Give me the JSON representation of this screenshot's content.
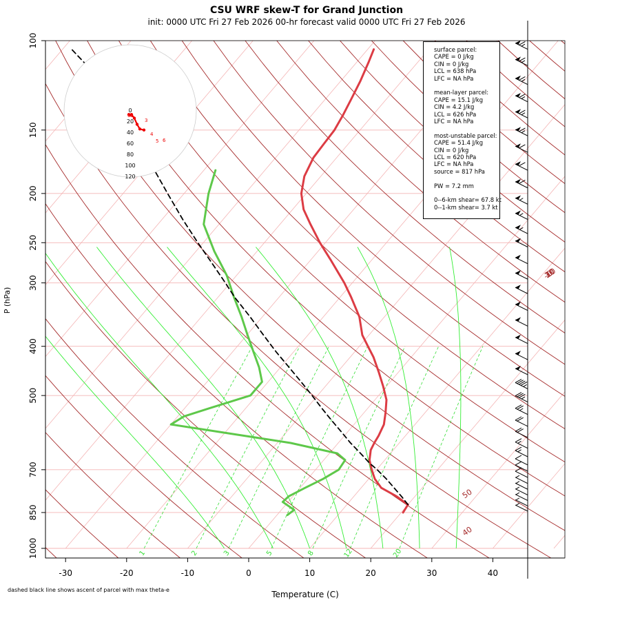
{
  "chart_data": {
    "type": "skew-t",
    "title": "CSU WRF skew-T for Grand Junction",
    "subtitle": "init: 0000 UTC Fri 27 Feb 2026     00-hr forecast valid 0000 UTC Fri 27 Feb 2026",
    "xlabel": "Temperature (C)",
    "ylabel": "P (hPa)",
    "footnote": "dashed black line shows ascent of parcel with max theta-e",
    "xlim": [
      -33,
      45
    ],
    "ylim": [
      1000,
      100
    ],
    "y_scale": "log",
    "x_ticks": [
      -30,
      -20,
      -10,
      0,
      10,
      20,
      30,
      40
    ],
    "p_ticks": [
      100,
      150,
      200,
      250,
      300,
      400,
      500,
      700,
      850,
      1000
    ],
    "grid": true,
    "dry_adiabats_C": [
      -10,
      0,
      10,
      20,
      30,
      40,
      50
    ],
    "mixing_ratio_labels": [
      "1",
      "2",
      "3",
      "5",
      "8",
      "12",
      "20"
    ],
    "temperature_profile": [
      {
        "p": 850,
        "t": 20.3
      },
      {
        "p": 820,
        "t": 20.0
      },
      {
        "p": 790,
        "t": 17.0
      },
      {
        "p": 760,
        "t": 13.3
      },
      {
        "p": 730,
        "t": 11.0
      },
      {
        "p": 700,
        "t": 9.2
      },
      {
        "p": 670,
        "t": 7.5
      },
      {
        "p": 640,
        "t": 6.3
      },
      {
        "p": 620,
        "t": 5.9
      },
      {
        "p": 600,
        "t": 5.6
      },
      {
        "p": 570,
        "t": 4.9
      },
      {
        "p": 540,
        "t": 3.5
      },
      {
        "p": 510,
        "t": 1.9
      },
      {
        "p": 480,
        "t": -0.5
      },
      {
        "p": 450,
        "t": -3.2
      },
      {
        "p": 420,
        "t": -6.2
      },
      {
        "p": 400,
        "t": -8.6
      },
      {
        "p": 380,
        "t": -11.1
      },
      {
        "p": 350,
        "t": -14.1
      },
      {
        "p": 320,
        "t": -18.2
      },
      {
        "p": 300,
        "t": -21.3
      },
      {
        "p": 270,
        "t": -26.8
      },
      {
        "p": 250,
        "t": -30.9
      },
      {
        "p": 230,
        "t": -35.0
      },
      {
        "p": 215,
        "t": -38.2
      },
      {
        "p": 200,
        "t": -40.8
      },
      {
        "p": 185,
        "t": -42.7
      },
      {
        "p": 170,
        "t": -43.8
      },
      {
        "p": 160,
        "t": -44.0
      },
      {
        "p": 150,
        "t": -44.2
      },
      {
        "p": 140,
        "t": -44.9
      },
      {
        "p": 130,
        "t": -45.8
      },
      {
        "p": 120,
        "t": -46.8
      },
      {
        "p": 110,
        "t": -48.1
      },
      {
        "p": 104,
        "t": -49.0
      }
    ],
    "dewpoint_profile": [
      {
        "p": 860,
        "t": 1.7
      },
      {
        "p": 840,
        "t": 2.1
      },
      {
        "p": 810,
        "t": -0.9
      },
      {
        "p": 790,
        "t": -0.7
      },
      {
        "p": 760,
        "t": 0.8
      },
      {
        "p": 730,
        "t": 2.5
      },
      {
        "p": 700,
        "t": 3.8
      },
      {
        "p": 670,
        "t": 3.5
      },
      {
        "p": 650,
        "t": 1.3
      },
      {
        "p": 620,
        "t": -7.8
      },
      {
        "p": 590,
        "t": -20.9
      },
      {
        "p": 570,
        "t": -30.0
      },
      {
        "p": 550,
        "t": -29.0
      },
      {
        "p": 530,
        "t": -26.0
      },
      {
        "p": 500,
        "t": -21.0
      },
      {
        "p": 470,
        "t": -21.0
      },
      {
        "p": 440,
        "t": -23.5
      },
      {
        "p": 410,
        "t": -26.6
      },
      {
        "p": 380,
        "t": -29.9
      },
      {
        "p": 350,
        "t": -33.4
      },
      {
        "p": 320,
        "t": -37.4
      },
      {
        "p": 290,
        "t": -41.6
      },
      {
        "p": 260,
        "t": -47.0
      },
      {
        "p": 230,
        "t": -52.5
      },
      {
        "p": 200,
        "t": -56.0
      },
      {
        "p": 180,
        "t": -58.1
      }
    ],
    "parcel_profile": [
      {
        "p": 820,
        "t": 20.0
      },
      {
        "p": 790,
        "t": 17.8
      },
      {
        "p": 760,
        "t": 15.4
      },
      {
        "p": 730,
        "t": 12.9
      },
      {
        "p": 700,
        "t": 10.1
      },
      {
        "p": 680,
        "t": 8.0
      },
      {
        "p": 650,
        "t": 5.1
      },
      {
        "p": 620,
        "t": 2.0
      },
      {
        "p": 590,
        "t": -1.0
      },
      {
        "p": 560,
        "t": -4.2
      },
      {
        "p": 530,
        "t": -7.5
      },
      {
        "p": 500,
        "t": -10.9
      },
      {
        "p": 470,
        "t": -14.6
      },
      {
        "p": 440,
        "t": -18.6
      },
      {
        "p": 410,
        "t": -22.9
      },
      {
        "p": 380,
        "t": -27.3
      },
      {
        "p": 350,
        "t": -32.0
      },
      {
        "p": 320,
        "t": -37.3
      },
      {
        "p": 300,
        "t": -40.8
      },
      {
        "p": 280,
        "t": -44.6
      },
      {
        "p": 250,
        "t": -50.9
      },
      {
        "p": 225,
        "t": -56.6
      },
      {
        "p": 200,
        "t": -62.7
      },
      {
        "p": 180,
        "t": -68.1
      },
      {
        "p": 160,
        "t": -74.2
      },
      {
        "p": 140,
        "t": -81.4
      },
      {
        "p": 125,
        "t": -87.6
      },
      {
        "p": 112,
        "t": -93.7
      },
      {
        "p": 104,
        "t": -98.5
      }
    ],
    "wind_profile_kt": [
      {
        "p": 104,
        "speed": 65
      },
      {
        "p": 112,
        "speed": 65
      },
      {
        "p": 122,
        "speed": 65
      },
      {
        "p": 132,
        "speed": 65
      },
      {
        "p": 142,
        "speed": 65
      },
      {
        "p": 154,
        "speed": 65
      },
      {
        "p": 166,
        "speed": 60
      },
      {
        "p": 180,
        "speed": 60
      },
      {
        "p": 195,
        "speed": 60
      },
      {
        "p": 210,
        "speed": 55
      },
      {
        "p": 225,
        "speed": 55
      },
      {
        "p": 240,
        "speed": 55
      },
      {
        "p": 255,
        "speed": 50
      },
      {
        "p": 275,
        "speed": 50
      },
      {
        "p": 295,
        "speed": 50
      },
      {
        "p": 315,
        "speed": 50
      },
      {
        "p": 340,
        "speed": 50
      },
      {
        "p": 365,
        "speed": 50
      },
      {
        "p": 395,
        "speed": 50
      },
      {
        "p": 425,
        "speed": 50
      },
      {
        "p": 455,
        "speed": 50
      },
      {
        "p": 485,
        "speed": 45
      },
      {
        "p": 515,
        "speed": 35
      },
      {
        "p": 545,
        "speed": 25
      },
      {
        "p": 575,
        "speed": 20
      },
      {
        "p": 605,
        "speed": 20
      },
      {
        "p": 635,
        "speed": 15
      },
      {
        "p": 660,
        "speed": 15
      },
      {
        "p": 685,
        "speed": 10
      },
      {
        "p": 705,
        "speed": 10
      },
      {
        "p": 725,
        "speed": 10
      },
      {
        "p": 745,
        "speed": 5
      },
      {
        "p": 765,
        "speed": 5
      },
      {
        "p": 785,
        "speed": 5
      },
      {
        "p": 805,
        "speed": 5
      },
      {
        "p": 825,
        "speed": 5
      },
      {
        "p": 845,
        "speed": 5
      }
    ],
    "hodograph": {
      "ring_labels": [
        "0",
        "20",
        "40",
        "60",
        "80",
        "100",
        "120"
      ],
      "point_labels": [
        "0",
        "1",
        "3",
        "4",
        "5",
        "6"
      ],
      "points": [
        [
          0,
          0
        ],
        [
          -2,
          1
        ],
        [
          2,
          1
        ],
        [
          6,
          -6
        ],
        [
          10,
          -18
        ],
        [
          14,
          -27
        ],
        [
          20,
          -29
        ]
      ]
    }
  },
  "stats": {
    "surface": {
      "header": "surface parcel:",
      "cape": "CAPE = 0 J/kg",
      "cin": "CIN = 0 J/kg",
      "lcl": "LCL = 638 hPa",
      "lfc": "LFC = NA hPa"
    },
    "meanlayer": {
      "header": "mean-layer parcel:",
      "cape": "CAPE = 15.1 J/kg",
      "cin": "CIN = 4.2 J/kg",
      "lcl": "LCL = 626 hPa",
      "lfc": "LFC = NA hPa"
    },
    "mostunstable": {
      "header": "most-unstable parcel:",
      "cape": "CAPE = 51.4 J/kg",
      "cin": "CIN = 0 J/kg",
      "lcl": "LCL = 620 hPa",
      "lfc": "LFC = NA hPa",
      "source": "source = 817 hPa"
    },
    "pw": "PW =  7.2 mm",
    "shear6": "0--6-km shear= 67.8 kt",
    "shear1": "0--1-km shear= 3.7 kt"
  },
  "colors": {
    "temperature": "#dc3c44",
    "dewpoint": "#5ec84a",
    "parcel": "#000000",
    "isotherm_grid": "#f4b4b4",
    "dry_adiabat": "#a52a2a",
    "moist_adiabat": "#33ee33",
    "mixing_ratio": "#33dd33",
    "hodograph_trace": "#ee0000"
  }
}
